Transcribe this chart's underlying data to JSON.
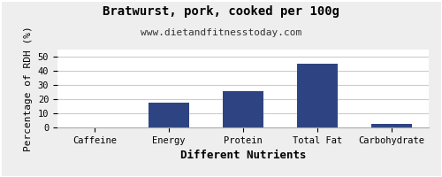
{
  "title": "Bratwurst, pork, cooked per 100g",
  "subtitle": "www.dietandfitnesstoday.com",
  "categories": [
    "Caffeine",
    "Energy",
    "Protein",
    "Total Fat",
    "Carbohydrate"
  ],
  "values": [
    0,
    17.5,
    25.5,
    45.0,
    2.5
  ],
  "bar_color": "#2e4482",
  "xlabel": "Different Nutrients",
  "ylabel": "Percentage of RDH (%)",
  "ylim": [
    0,
    55
  ],
  "yticks": [
    0,
    10,
    20,
    30,
    40,
    50
  ],
  "background_color": "#eeeeee",
  "plot_bg_color": "#ffffff",
  "title_fontsize": 10,
  "subtitle_fontsize": 8,
  "axis_label_fontsize": 8,
  "tick_fontsize": 7.5,
  "xlabel_fontsize": 9
}
